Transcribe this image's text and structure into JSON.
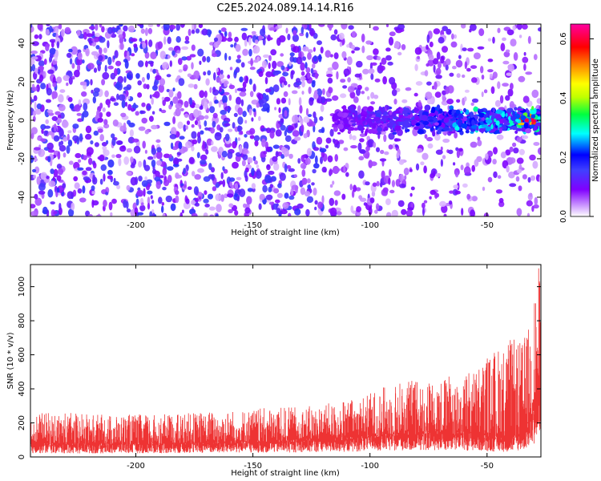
{
  "title": "C2E5.2024.089.14.14.R16",
  "chart_data": [
    {
      "type": "heatmap",
      "xlabel": "Height of straight line (km)",
      "ylabel": "Frequency (Hz)",
      "xlim": [
        -245,
        -27
      ],
      "ylim": [
        -50,
        50
      ],
      "x_ticks": [
        -200,
        -150,
        -100,
        -50
      ],
      "y_ticks": [
        -40,
        -20,
        0,
        20,
        40
      ],
      "colorbar": {
        "label": "Normalized spectral amplitude",
        "range": [
          0,
          0.65
        ],
        "ticks": [
          0.0,
          0.2,
          0.4,
          0.6
        ],
        "colors": [
          "#ffffff",
          "#c080ff",
          "#8000ff",
          "#4040ff",
          "#0000ff",
          "#00ffff",
          "#00ff40",
          "#c0ff00",
          "#ffff00",
          "#ff8000",
          "#ff0000",
          "#ff00a0"
        ]
      },
      "features": {
        "background": "scattered blobs 0.05-0.2 across all frequencies, fading for heights above -120 km",
        "signal_band": {
          "frequency_center_hz": 0,
          "frequency_halfwidth_hz": 6,
          "height_start_km": -115,
          "height_end_km": -27,
          "peak_amplitude": 0.62,
          "peak_height_km": -33
        }
      }
    },
    {
      "type": "area",
      "xlabel": "Height of straight line (km)",
      "ylabel": "SNR (10 * v/v)",
      "xlim": [
        -245,
        -27
      ],
      "ylim": [
        0,
        1130
      ],
      "x_ticks": [
        -200,
        -150,
        -100,
        -50
      ],
      "y_ticks": [
        0,
        200,
        400,
        600,
        800,
        1000
      ],
      "color": "#ee3333",
      "series": [
        {
          "x": [
            -245,
            -230,
            -215,
            -200,
            -185,
            -170,
            -155,
            -140,
            -125,
            -115,
            -105,
            -95,
            -85,
            -75,
            -65,
            -55,
            -50,
            -45,
            -40,
            -35,
            -32,
            -30,
            -28,
            -27
          ],
          "baseline": [
            70,
            70,
            68,
            70,
            72,
            75,
            80,
            85,
            90,
            95,
            105,
            115,
            125,
            130,
            130,
            120,
            110,
            100,
            100,
            130,
            180,
            250,
            300,
            300
          ],
          "envelope": [
            260,
            260,
            250,
            250,
            250,
            270,
            280,
            290,
            300,
            320,
            350,
            410,
            460,
            460,
            480,
            530,
            600,
            660,
            700,
            680,
            780,
            950,
            1120,
            1120
          ]
        }
      ]
    }
  ]
}
